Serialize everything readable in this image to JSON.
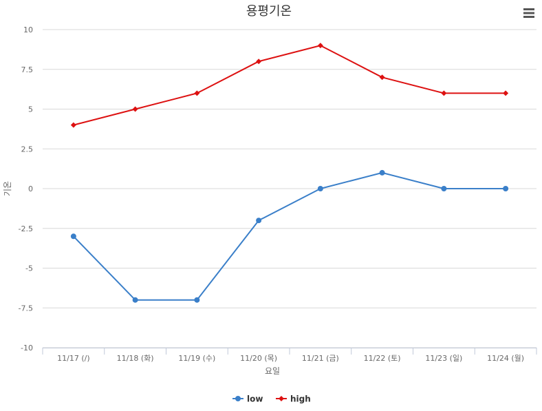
{
  "chart_data": {
    "type": "line",
    "title": "용평기온",
    "xlabel": "요일",
    "ylabel": "기온",
    "categories": [
      "11/17 (/)",
      "11/18 (화)",
      "11/19 (수)",
      "11/20 (목)",
      "11/21 (금)",
      "11/22 (토)",
      "11/23 (일)",
      "11/24 (월)"
    ],
    "ylim": [
      -10,
      10
    ],
    "yticks": [
      10,
      7.5,
      5,
      2.5,
      0,
      -2.5,
      -5,
      -7.5,
      -10
    ],
    "grid": true,
    "legend": "bottom-center",
    "series": [
      {
        "name": "low",
        "color": "#3a7fc9",
        "marker": "circle",
        "values": [
          -3,
          -7,
          -7,
          -2,
          0,
          1,
          0,
          0
        ]
      },
      {
        "name": "high",
        "color": "#dd1111",
        "marker": "diamond",
        "values": [
          4,
          5,
          6,
          8,
          9,
          7,
          6,
          6
        ]
      }
    ]
  },
  "menu": {
    "icon": "hamburger-menu-icon"
  }
}
